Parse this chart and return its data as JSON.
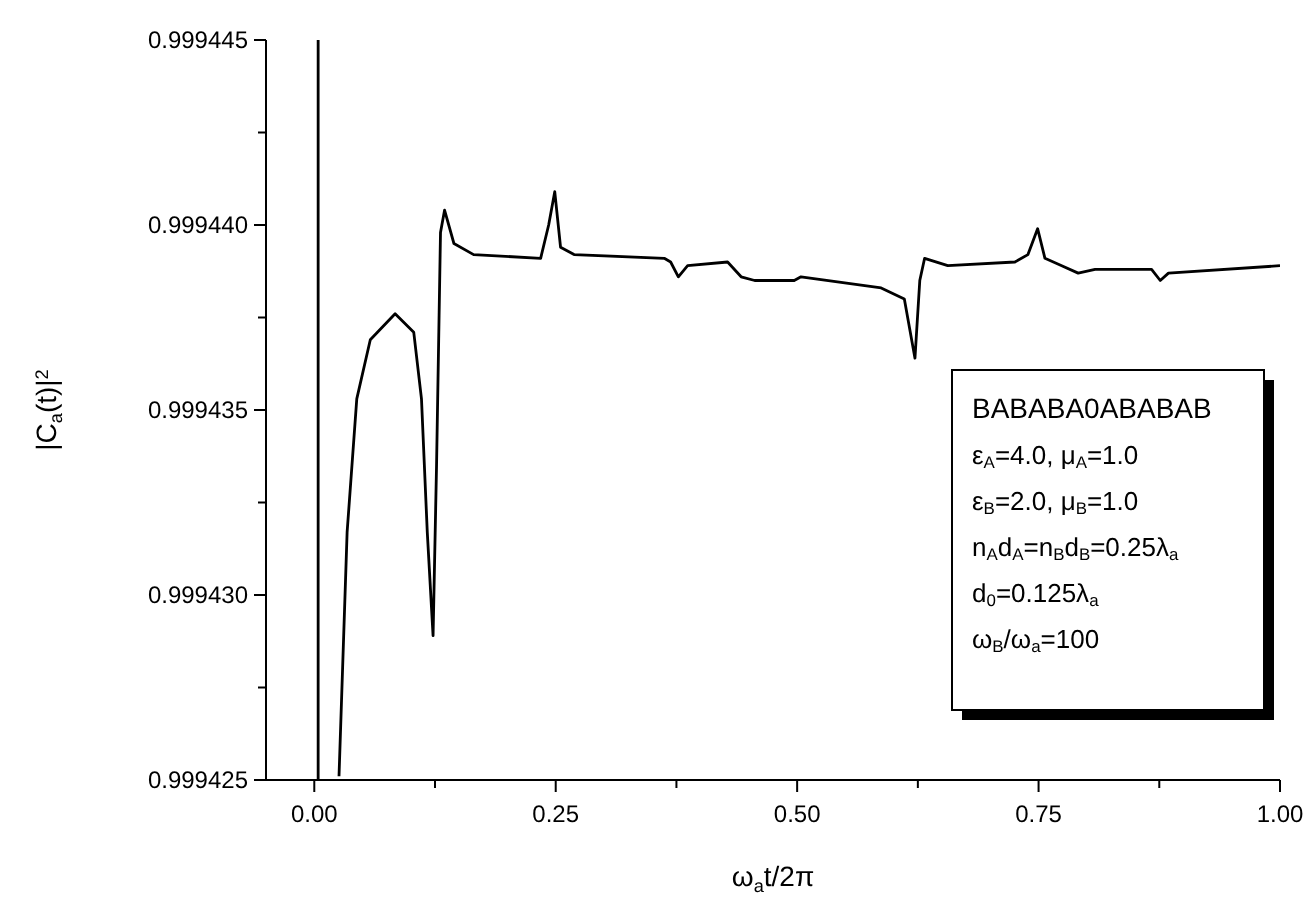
{
  "chart_data": {
    "type": "line",
    "xlabel": "ω$_{a}$t/2π",
    "ylabel": "|C$_{a}$(t)|$^{2}$",
    "series": [
      {
        "color": "#000000",
        "x": [
          0.004,
          0.004,
          0.015,
          0.0256,
          0.034,
          0.044,
          0.058,
          0.0837,
          0.103,
          0.111,
          0.117,
          0.123,
          0.1266,
          0.1307,
          0.1349,
          0.1446,
          0.165,
          0.2344,
          0.2427,
          0.249,
          0.255,
          0.269,
          0.3624,
          0.369,
          0.377,
          0.3866,
          0.428,
          0.442,
          0.456,
          0.497,
          0.504,
          0.587,
          0.611,
          0.622,
          0.627,
          0.632,
          0.656,
          0.7255,
          0.739,
          0.749,
          0.7566,
          0.774,
          0.791,
          0.8085,
          0.867,
          0.876,
          0.8845,
          1.0
        ],
        "values": [
          0.999445,
          0.999425,
          null,
          0.9994251,
          0.9994317,
          0.9994353,
          0.9994369,
          0.9994376,
          0.9994371,
          0.9994353,
          0.9994317,
          0.9994289,
          0.9994335,
          0.9994398,
          0.9994404,
          0.9994395,
          0.9994392,
          0.9994391,
          0.99944,
          0.9994409,
          0.9994394,
          0.9994392,
          0.9994391,
          0.999439,
          0.9994386,
          0.9994389,
          0.999439,
          0.9994386,
          0.9994385,
          0.9994385,
          0.9994386,
          0.9994383,
          0.999438,
          0.9994364,
          0.9994385,
          0.9994391,
          0.9994389,
          0.999439,
          0.9994392,
          0.9994399,
          0.9994391,
          0.9994389,
          0.9994387,
          0.9994388,
          0.9994388,
          0.9994385,
          0.9994387,
          0.9994389
        ]
      }
    ],
    "xlim": [
      -0.05,
      1.0
    ],
    "xticks": [
      "0.00",
      {
        "value": 0.125,
        "label": null
      },
      {
        "value": 0.25,
        "label": "0.25"
      },
      {
        "value": 0.375,
        "label": null
      },
      {
        "value": 0.5,
        "label": "0.50"
      },
      {
        "value": 0.625,
        "label": null
      },
      {
        "value": 0.75,
        "label": "0.75"
      },
      {
        "value": 0.875,
        "label": null
      },
      {
        "value": 1.0,
        "label": "1.00"
      }
    ],
    "ylim": [
      0.999425,
      0.999445
    ],
    "yticks": [
      0.999425,
      {
        "value": 0.9994275,
        "label": null
      },
      {
        "value": 0.99943,
        "label": "0.999430"
      },
      {
        "value": 0.9994325,
        "label": null
      },
      0.999435,
      {
        "value": 0.9994375,
        "label": null
      },
      {
        "value": 0.99944,
        "label": "0.999440"
      },
      {
        "value": 0.9994425,
        "label": null
      },
      0.999445
    ],
    "annotations": [
      "BABABA0ABABAB",
      "ε$_{A}$=4.0, μ$_{A}$=1.0",
      "ε$_{B}$=2.0, μ$_{B}$=1.0",
      "n$_{A}$d$_{A}$=n$_{B}$d$_{B}$=0.25λ$_{a}$",
      "d$_{0}$=0.125λ$_{a}$",
      "ω$_{B}$/ω$_{a}$=100"
    ],
    "grid": false,
    "marker": "none",
    "line_style": "solid"
  }
}
